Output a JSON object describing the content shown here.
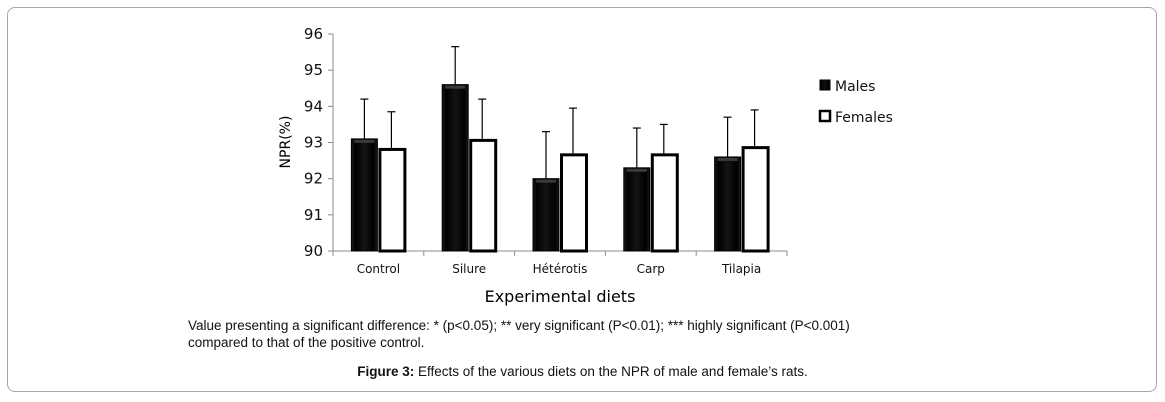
{
  "chart_data": {
    "type": "bar",
    "title": "",
    "xlabel": "Experimental diets",
    "ylabel": "NPR(%)",
    "ylim": [
      90,
      96
    ],
    "yticks": [
      90,
      91,
      92,
      93,
      94,
      95,
      96
    ],
    "categories": [
      "Control",
      "Silure",
      "Hétérotis",
      "Carp",
      "Tilapia"
    ],
    "series": [
      {
        "name": "Males",
        "color": "#000000",
        "values": [
          93.1,
          94.6,
          92.0,
          92.3,
          92.6
        ],
        "errors": [
          1.1,
          1.05,
          1.3,
          1.1,
          1.1
        ]
      },
      {
        "name": "Females",
        "color": "#ffffff",
        "values": [
          92.85,
          93.1,
          92.7,
          92.7,
          92.9
        ],
        "errors": [
          1.0,
          1.1,
          1.25,
          0.8,
          1.0
        ]
      }
    ],
    "legend": {
      "position": "right",
      "entries": [
        "Males",
        "Females"
      ]
    },
    "grid": false
  },
  "note": {
    "line1": "Value presenting a significant difference: * (p<0.05); ** very significant (P<0.01); *** highly significant (P<0.001)",
    "line2": "compared to that of the positive control."
  },
  "caption": {
    "label": "Figure 3:",
    "text": " Effects of the various diets on the NPR of male and female’s rats."
  }
}
